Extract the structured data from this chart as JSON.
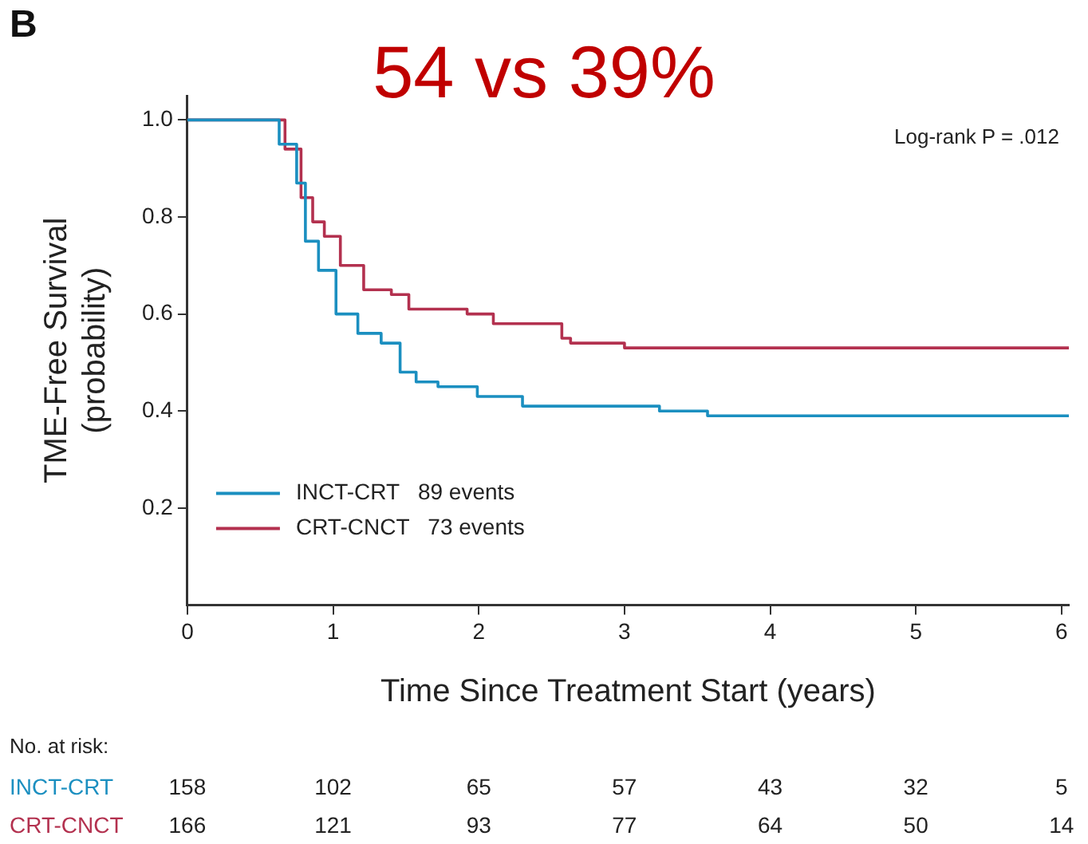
{
  "chart_data": {
    "type": "step",
    "title": "54 vs 39%",
    "xlabel": "Time Since Treatment Start (years)",
    "ylabel": "TME-Free Survival\n(probability)",
    "xlim": [
      0,
      6.05
    ],
    "xticks": [
      0,
      1,
      2,
      3,
      4,
      5,
      6
    ],
    "ylim": [
      0,
      1.05
    ],
    "yticks": [
      {
        "value": 0.2,
        "label": "0.2"
      },
      {
        "value": 0.4,
        "label": "0.4"
      },
      {
        "value": 0.6,
        "label": "0.6"
      },
      {
        "value": 0.8,
        "label": "0.8"
      },
      {
        "value": 1,
        "label": "1.0"
      }
    ],
    "grid": false,
    "legend": "bottom left",
    "series": [
      {
        "name": "INCT-CRT   89 events",
        "color": "#1b8fc0",
        "x": [
          0,
          0.63,
          0.75,
          0.81,
          0.9,
          1.02,
          1.17,
          1.33,
          1.46,
          1.57,
          1.72,
          1.99,
          2.3,
          2.65,
          3.24,
          3.57,
          3.82,
          6.05
        ],
        "values": [
          1,
          1,
          0.95,
          0.87,
          0.75,
          0.69,
          0.6,
          0.56,
          0.54,
          0.48,
          0.46,
          0.45,
          0.43,
          0.41,
          0.41,
          0.4,
          0.39,
          0.39
        ]
      },
      {
        "name": "CRT-CNCT   73 events",
        "color": "#b3314f",
        "x": [
          0,
          0.67,
          0.78,
          0.86,
          0.94,
          1.05,
          1.21,
          1.4,
          1.52,
          1.92,
          2.1,
          2.57,
          2.63,
          3.0,
          5.35,
          6.05
        ],
        "values": [
          1,
          1,
          0.94,
          0.84,
          0.79,
          0.76,
          0.7,
          0.65,
          0.64,
          0.61,
          0.6,
          0.58,
          0.55,
          0.54,
          0.53,
          0.53
        ]
      }
    ],
    "annotations": [
      "B",
      "Log-rank P = .012",
      "No. at risk:",
      "INCT-CRT  158  102  65  57  43  32  5",
      "CRT-CNCT  166  121  93  77  64  50  14"
    ]
  }
}
